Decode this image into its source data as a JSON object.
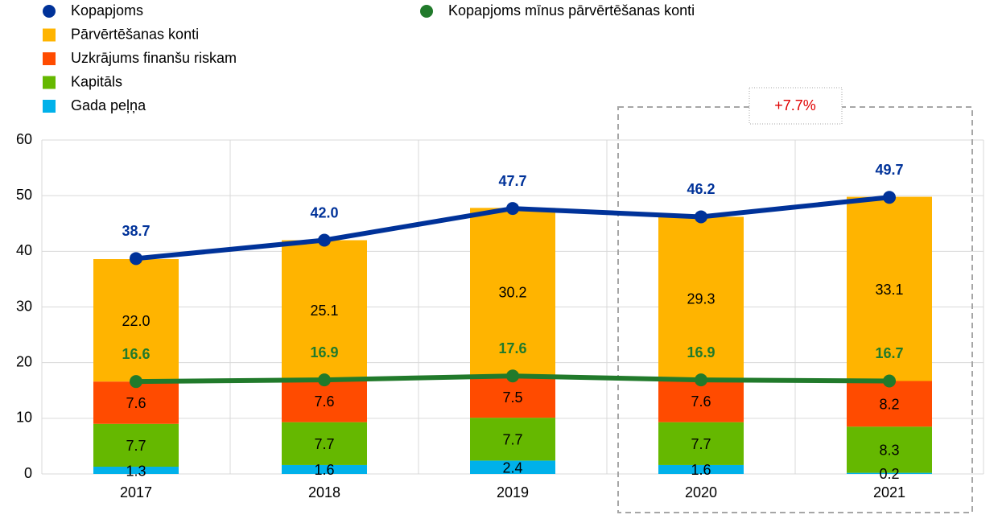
{
  "chart_data": {
    "type": "bar",
    "categories": [
      "2017",
      "2018",
      "2019",
      "2020",
      "2021"
    ],
    "series": [
      {
        "name": "Gada peļņa",
        "type": "bar",
        "color": "#00b1ea",
        "values": [
          1.3,
          1.6,
          2.4,
          1.6,
          0.2
        ],
        "value_labels": [
          "1.3",
          "1.6",
          "2.4",
          "1.6",
          "0.2"
        ]
      },
      {
        "name": "Kapitāls",
        "type": "bar",
        "color": "#65b800",
        "values": [
          7.7,
          7.7,
          7.7,
          7.7,
          8.3
        ],
        "value_labels": [
          "7.7",
          "7.7",
          "7.7",
          "7.7",
          "8.3"
        ]
      },
      {
        "name": "Uzkrājums finanšu riskam",
        "type": "bar",
        "color": "#ff4b00",
        "values": [
          7.6,
          7.6,
          7.5,
          7.6,
          8.2
        ],
        "value_labels": [
          "7.6",
          "7.6",
          "7.5",
          "7.6",
          "8.2"
        ]
      },
      {
        "name": "Pārvērtēšanas konti",
        "type": "bar",
        "color": "#ffb400",
        "values": [
          22.0,
          25.1,
          30.2,
          29.3,
          33.1
        ],
        "value_labels": [
          "22.0",
          "25.1",
          "30.2",
          "29.3",
          "33.1"
        ]
      },
      {
        "name": "Kopapjoms",
        "type": "line",
        "color": "#003299",
        "values": [
          38.7,
          42.0,
          47.7,
          46.2,
          49.7
        ],
        "value_labels": [
          "38.7",
          "42.0",
          "47.7",
          "46.2",
          "49.7"
        ]
      },
      {
        "name": "Kopapjoms mīnus pārvērtēšanas konti",
        "type": "line",
        "color": "#217a2b",
        "values": [
          16.6,
          16.9,
          17.6,
          16.9,
          16.7
        ],
        "value_labels": [
          "16.6",
          "16.9",
          "17.6",
          "16.9",
          "16.7"
        ]
      }
    ],
    "annotation": "+7.7%",
    "ylim": [
      0,
      60
    ],
    "yticks": [
      0,
      10,
      20,
      30,
      40,
      50,
      60
    ],
    "grid": true
  }
}
